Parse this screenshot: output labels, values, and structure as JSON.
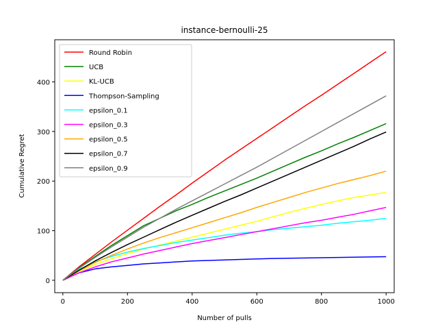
{
  "chart_data": {
    "type": "line",
    "title": "instance-bernoulli-25",
    "xlabel": "Number of pulls",
    "ylabel": "Cumulative Regret",
    "xlim": [
      -25,
      1025
    ],
    "ylim": [
      -25,
      485
    ],
    "xticks": [
      0,
      200,
      400,
      600,
      800,
      1000
    ],
    "yticks": [
      0,
      100,
      200,
      300,
      400
    ],
    "grid": false,
    "legend_position": "upper-left",
    "x": [
      0,
      50,
      100,
      150,
      200,
      250,
      300,
      350,
      400,
      450,
      500,
      550,
      600,
      650,
      700,
      750,
      800,
      850,
      900,
      950,
      1000
    ],
    "series": [
      {
        "name": "Round Robin",
        "color": "#ff0000",
        "values": [
          0,
          27,
          52,
          77,
          101,
          125,
          149,
          172,
          196,
          219,
          242,
          264,
          286,
          308,
          330,
          352,
          373,
          395,
          417,
          439,
          461
        ]
      },
      {
        "name": "UCB",
        "color": "#008000",
        "values": [
          0,
          25,
          48,
          70,
          90,
          110,
          125,
          140,
          153,
          167,
          180,
          193,
          206,
          220,
          234,
          248,
          261,
          275,
          288,
          302,
          316
        ]
      },
      {
        "name": "KL-UCB",
        "color": "#ffff00",
        "values": [
          0,
          18,
          32,
          43,
          54,
          63,
          71,
          79,
          87,
          95,
          103,
          111,
          119,
          128,
          137,
          145,
          153,
          160,
          167,
          172,
          177
        ]
      },
      {
        "name": "Thompson-Sampling",
        "color": "#0000ff",
        "values": [
          0,
          15,
          23,
          27,
          30,
          33,
          35,
          37,
          39,
          40,
          41,
          42,
          43,
          44,
          44.5,
          45,
          45.5,
          46,
          46.5,
          47,
          47.5
        ]
      },
      {
        "name": "epsilon_0.1",
        "color": "#00ffff",
        "values": [
          0,
          22,
          37,
          48,
          57,
          64,
          70,
          76,
          81,
          86,
          91,
          95,
          98,
          102,
          105,
          108,
          111,
          115,
          118,
          121,
          125
        ]
      },
      {
        "name": "epsilon_0.3",
        "color": "#ff00ff",
        "values": [
          0,
          15,
          27,
          37,
          45,
          53,
          60,
          67,
          74,
          80,
          86,
          92,
          98,
          104,
          110,
          116,
          121,
          127,
          133,
          140,
          147
        ]
      },
      {
        "name": "epsilon_0.5",
        "color": "#ffa500",
        "values": [
          0,
          19,
          36,
          50,
          63,
          75,
          86,
          96,
          106,
          116,
          126,
          136,
          147,
          157,
          167,
          177,
          186,
          195,
          203,
          211,
          220
        ]
      },
      {
        "name": "epsilon_0.7",
        "color": "#000000",
        "values": [
          0,
          20,
          39,
          56,
          72,
          87,
          102,
          117,
          131,
          145,
          159,
          172,
          186,
          200,
          214,
          228,
          242,
          256,
          270,
          285,
          299
        ]
      },
      {
        "name": "epsilon_0.9",
        "color": "#808080",
        "values": [
          0,
          24,
          46,
          67,
          87,
          107,
          125,
          143,
          160,
          177,
          194,
          211,
          228,
          246,
          264,
          282,
          300,
          318,
          336,
          354,
          372
        ]
      }
    ]
  }
}
